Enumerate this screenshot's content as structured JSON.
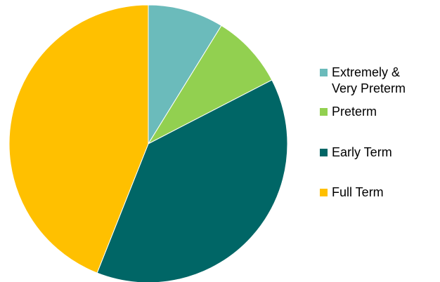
{
  "chart_data": {
    "type": "pie",
    "start_angle_deg": 0,
    "direction": "clockwise",
    "slices": [
      {
        "label": "Extremely &\nVery Preterm",
        "value": 8.8,
        "color": "#6BBBBB"
      },
      {
        "label": "Preterm",
        "value": 8.6,
        "color": "#92D050"
      },
      {
        "label": "Early Term",
        "value": 38.6,
        "color": "#006666"
      },
      {
        "label": "Full Term",
        "value": 44.0,
        "color": "#FFC000"
      }
    ],
    "legend": {
      "position": "right"
    }
  }
}
